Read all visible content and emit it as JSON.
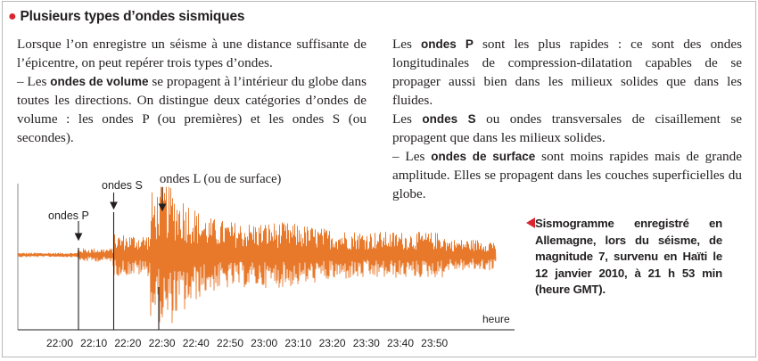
{
  "title": "Plusieurs types d’ondes sismiques",
  "left_column": {
    "p1": "Lorsque l’on enregistre un séisme à une distance suffisante de l’épicentre, on peut repérer trois types d’ondes.",
    "p2_prefix": "– Les ",
    "p2_bold": "ondes de volume",
    "p2_suffix": " se propagent à l’intérieur du globe dans toutes les directions. On distingue deux catégories d’ondes de volume : les ondes P (ou premières) et les ondes S (ou secondes)."
  },
  "right_column": {
    "p1_prefix": "Les ",
    "p1_bold": "ondes P",
    "p1_suffix": " sont les plus rapides : ce sont des ondes longitudinales de compression-dilatation capables de se propager aussi bien dans les milieux solides que dans les fluides.",
    "p2_prefix": "Les ",
    "p2_bold": "ondes S",
    "p2_suffix": " ou ondes transversales de cisaillement se propagent que dans les milieux solides.",
    "p3_prefix": "– Les ",
    "p3_bold": "ondes de surface",
    "p3_suffix": " sont moins rapides mais de grande amplitude. Elles se propagent dans les couches superficielles du globe."
  },
  "seismogram": {
    "axis_unit": "heure",
    "ticks": [
      "22:00",
      "22:10",
      "22:20",
      "22:30",
      "22:40",
      "22:50",
      "23:00",
      "23:10",
      "23:20",
      "23:30",
      "23:40",
      "23:50"
    ],
    "label_p": "ondes P",
    "label_s": "ondes S",
    "label_l": "ondes L (ou de surface)",
    "trace_color": "#e8782a"
  },
  "caption": "Sismogramme enregistré en Allemagne, lors du séisme, de magnitude 7, survenu en Haïti le 12 janvier 2010, à 21 h 53 min (heure GMT).",
  "colors": {
    "accent": "#d8262f",
    "trace": "#e8782a"
  }
}
